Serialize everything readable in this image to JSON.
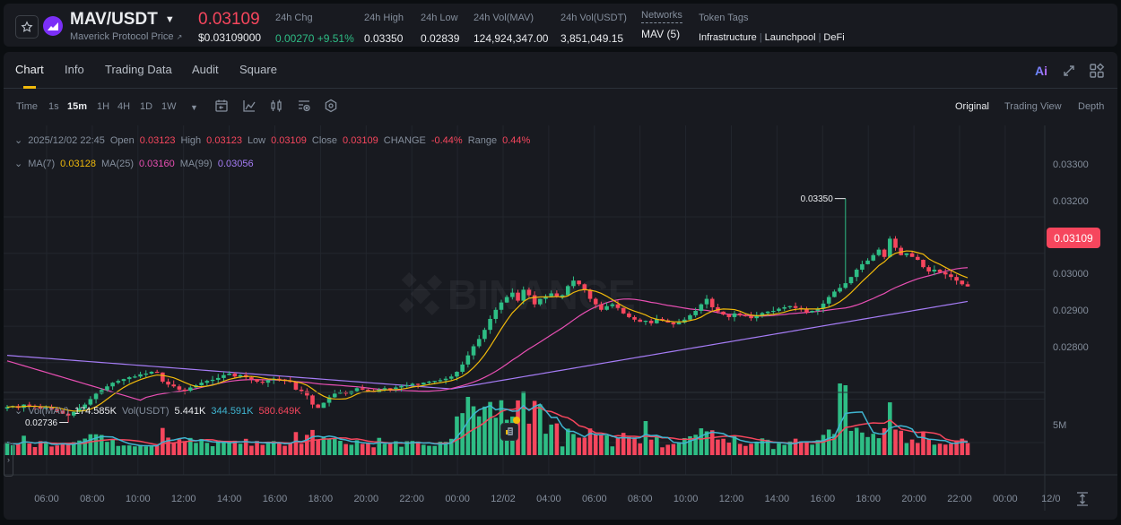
{
  "header": {
    "pair": "MAV/USDT",
    "coin_name": "Maverick Protocol Price",
    "last_price": "0.03109",
    "usd_price": "$0.03109000",
    "stats": [
      {
        "label": "24h Chg",
        "value": "0.00270 +9.51%",
        "color": "green"
      },
      {
        "label": "24h High",
        "value": "0.03350"
      },
      {
        "label": "24h Low",
        "value": "0.02839"
      },
      {
        "label": "24h Vol(MAV)",
        "value": "124,924,347.00"
      },
      {
        "label": "24h Vol(USDT)",
        "value": "3,851,049.15"
      },
      {
        "label": "Networks",
        "value": "MAV (5)"
      }
    ],
    "token_tags_label": "Token Tags",
    "token_tags": [
      "Infrastructure",
      "Launchpool",
      "DeFi"
    ]
  },
  "tabs": [
    {
      "label": "Chart",
      "active": true
    },
    {
      "label": "Info"
    },
    {
      "label": "Trading Data"
    },
    {
      "label": "Audit"
    },
    {
      "label": "Square"
    }
  ],
  "header_icons": {
    "ai": "Ai"
  },
  "toolbar": {
    "time_label": "Time",
    "intervals": [
      "1s",
      "15m",
      "1H",
      "4H",
      "1D",
      "1W"
    ],
    "active_interval": "15m",
    "views": [
      "Original",
      "Trading View",
      "Depth"
    ],
    "active_view": "Original"
  },
  "legend": {
    "ohlc": {
      "datetime": "2025/12/02 22:45",
      "open_label": "Open",
      "open": "0.03123",
      "high_label": "High",
      "high": "0.03123",
      "low_label": "Low",
      "low": "0.03109",
      "close_label": "Close",
      "close": "0.03109",
      "change_label": "CHANGE",
      "change": "-0.44%",
      "range_label": "Range",
      "range": "0.44%"
    },
    "ma": {
      "ma7_label": "MA(7)",
      "ma7": "0.03128",
      "ma25_label": "MA(25)",
      "ma25": "0.03160",
      "ma99_label": "MA(99)",
      "ma99": "0.03056"
    },
    "vol": {
      "vol_mav_label": "Vol(MAV)",
      "vol_mav": "174.585K",
      "vol_usdt_label": "Vol(USDT)",
      "vol_usdt": "5.441K",
      "ma5": "344.591K",
      "ma10": "580.649K"
    }
  },
  "price_axis": [
    "0.03300",
    "0.03200",
    "0.03100",
    "0.03000",
    "0.02900",
    "0.02800"
  ],
  "current_price_badge": "0.03109",
  "high_marker": "0.03350",
  "low_marker": "0.02736",
  "volume_axis": "5M",
  "time_axis": [
    "06:00",
    "08:00",
    "10:00",
    "12:00",
    "14:00",
    "16:00",
    "18:00",
    "20:00",
    "22:00",
    "00:00",
    "12/02",
    "04:00",
    "06:00",
    "08:00",
    "10:00",
    "12:00",
    "14:00",
    "16:00",
    "18:00",
    "20:00",
    "22:00",
    "00:00",
    "12/0"
  ],
  "watermark": "BINANCE",
  "colors": {
    "up": "#2ebd85",
    "down": "#f6465d",
    "ma7": "#f0b90b",
    "ma25": "#e84fb3",
    "ma99": "#a57cf5",
    "vol_ma5": "#3fb5d1",
    "vol_ma10": "#f6465d",
    "accent": "#f0b90b"
  },
  "chart_data": {
    "type": "candlestick",
    "title": "MAV/USDT 15m",
    "interval": "15m",
    "ylim": [
      0.0271,
      0.0339
    ],
    "price_ticks": [
      0.028,
      0.029,
      0.03,
      0.031,
      0.032,
      0.033
    ],
    "annotations": {
      "high": 0.0335,
      "low": 0.02736,
      "last": 0.03109
    },
    "closes": [
      0.02778,
      0.02781,
      0.02776,
      0.02785,
      0.02782,
      0.02779,
      0.02774,
      0.02777,
      0.02772,
      0.02768,
      0.0276,
      0.02755,
      0.02765,
      0.02775,
      0.02785,
      0.028,
      0.02815,
      0.02825,
      0.02835,
      0.02845,
      0.0285,
      0.02855,
      0.0286,
      0.02862,
      0.02868,
      0.0287,
      0.02875,
      0.02873,
      0.02848,
      0.0284,
      0.02835,
      0.02826,
      0.02823,
      0.02832,
      0.02838,
      0.02845,
      0.0285,
      0.02853,
      0.02858,
      0.02866,
      0.0287,
      0.02862,
      0.02866,
      0.0286,
      0.02855,
      0.02848,
      0.02845,
      0.02852,
      0.02856,
      0.02854,
      0.0285,
      0.02848,
      0.02826,
      0.02822,
      0.0281,
      0.02785,
      0.02776,
      0.0279,
      0.02805,
      0.02815,
      0.0282,
      0.02815,
      0.02822,
      0.0283,
      0.02826,
      0.02822,
      0.02818,
      0.02826,
      0.0283,
      0.02828,
      0.02832,
      0.02836,
      0.02838,
      0.02842,
      0.0284,
      0.02845,
      0.02848,
      0.0285,
      0.02852,
      0.02856,
      0.02862,
      0.02875,
      0.02895,
      0.0292,
      0.02945,
      0.02965,
      0.0299,
      0.0302,
      0.03045,
      0.03065,
      0.0308,
      0.03092,
      0.0307,
      0.031,
      0.03085,
      0.0306,
      0.03075,
      0.03082,
      0.0309,
      0.0308,
      0.03085,
      0.0311,
      0.03125,
      0.03115,
      0.031,
      0.03075,
      0.0306,
      0.03045,
      0.03055,
      0.0306,
      0.0305,
      0.03035,
      0.03025,
      0.03018,
      0.03012,
      0.03015,
      0.03008,
      0.0302,
      0.03016,
      0.0301,
      0.03005,
      0.0301,
      0.03018,
      0.0303,
      0.03042,
      0.0306,
      0.03075,
      0.03052,
      0.0304,
      0.03032,
      0.03025,
      0.03035,
      0.0303,
      0.03028,
      0.03022,
      0.0303,
      0.03036,
      0.0304,
      0.03042,
      0.03048,
      0.03052,
      0.03055,
      0.0305,
      0.03046,
      0.03038,
      0.03042,
      0.03048,
      0.03062,
      0.0308,
      0.03095,
      0.03105,
      0.03118,
      0.03135,
      0.03155,
      0.0317,
      0.0318,
      0.03195,
      0.0321,
      0.0319,
      0.0324,
      0.03215,
      0.03195,
      0.032,
      0.0319,
      0.03182,
      0.03162,
      0.0315,
      0.03155,
      0.03148,
      0.03142,
      0.03135,
      0.03125,
      0.03115,
      0.03109
    ],
    "volume_axis_label": "5M"
  }
}
